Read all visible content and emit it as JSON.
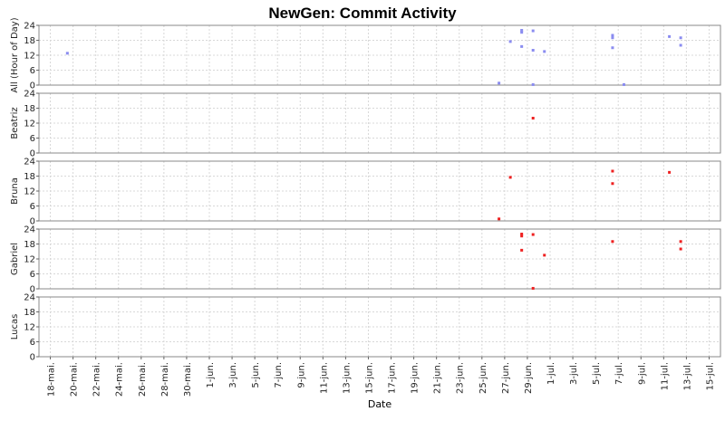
{
  "chart_data": {
    "type": "scatter",
    "title": "NewGen: Commit Activity",
    "xlabel": "Date",
    "x_ticks": [
      "18-mai.",
      "20-mai.",
      "22-mai.",
      "24-mai.",
      "26-mai.",
      "28-mai.",
      "30-mai.",
      "1-jun.",
      "3-jun.",
      "5-jun.",
      "7-jun.",
      "9-jun.",
      "11-jun.",
      "13-jun.",
      "15-jun.",
      "17-jun.",
      "19-jun.",
      "21-jun.",
      "23-jun.",
      "25-jun.",
      "27-jun.",
      "29-jun.",
      "1-jul.",
      "3-jul.",
      "5-jul.",
      "7-jul.",
      "9-jul.",
      "11-jul.",
      "13-jul.",
      "15-jul."
    ],
    "x_start_date": "2024-05-17",
    "x_end_date": "2024-07-16",
    "ylim": [
      0,
      24
    ],
    "y_ticks": [
      0,
      6,
      12,
      18,
      24
    ],
    "grid": true,
    "panels": [
      {
        "name": "All (Hour of Day)",
        "color": "#8a8cf0",
        "points": [
          [
            "2024-05-19",
            12.8
          ],
          [
            "2024-06-26",
            0.8
          ],
          [
            "2024-06-27",
            17.5
          ],
          [
            "2024-06-28",
            15.5
          ],
          [
            "2024-06-28",
            21.2
          ],
          [
            "2024-06-28",
            22.0
          ],
          [
            "2024-06-29",
            14.0
          ],
          [
            "2024-06-29",
            21.8
          ],
          [
            "2024-06-30",
            13.5
          ],
          [
            "2024-06-29",
            0.2
          ],
          [
            "2024-07-06",
            15.0
          ],
          [
            "2024-07-06",
            19.0
          ],
          [
            "2024-07-06",
            20.0
          ],
          [
            "2024-07-07",
            0.2
          ],
          [
            "2024-07-11",
            19.5
          ],
          [
            "2024-07-12",
            16.0
          ],
          [
            "2024-07-12",
            19.0
          ]
        ]
      },
      {
        "name": "Beatriz",
        "color": "#ee2020",
        "points": [
          [
            "2024-06-29",
            14.0
          ]
        ]
      },
      {
        "name": "Bruna",
        "color": "#ee2020",
        "points": [
          [
            "2024-06-26",
            0.8
          ],
          [
            "2024-06-27",
            17.5
          ],
          [
            "2024-07-06",
            15.0
          ],
          [
            "2024-07-06",
            20.0
          ],
          [
            "2024-07-11",
            19.5
          ]
        ]
      },
      {
        "name": "Gabriel",
        "color": "#ee2020",
        "points": [
          [
            "2024-06-28",
            15.5
          ],
          [
            "2024-06-28",
            21.2
          ],
          [
            "2024-06-28",
            22.0
          ],
          [
            "2024-06-29",
            21.8
          ],
          [
            "2024-06-30",
            13.5
          ],
          [
            "2024-06-29",
            0.2
          ],
          [
            "2024-07-06",
            19.0
          ],
          [
            "2024-07-12",
            16.0
          ],
          [
            "2024-07-12",
            19.0
          ]
        ]
      },
      {
        "name": "Lucas",
        "color": "#ee2020",
        "points": []
      }
    ]
  }
}
